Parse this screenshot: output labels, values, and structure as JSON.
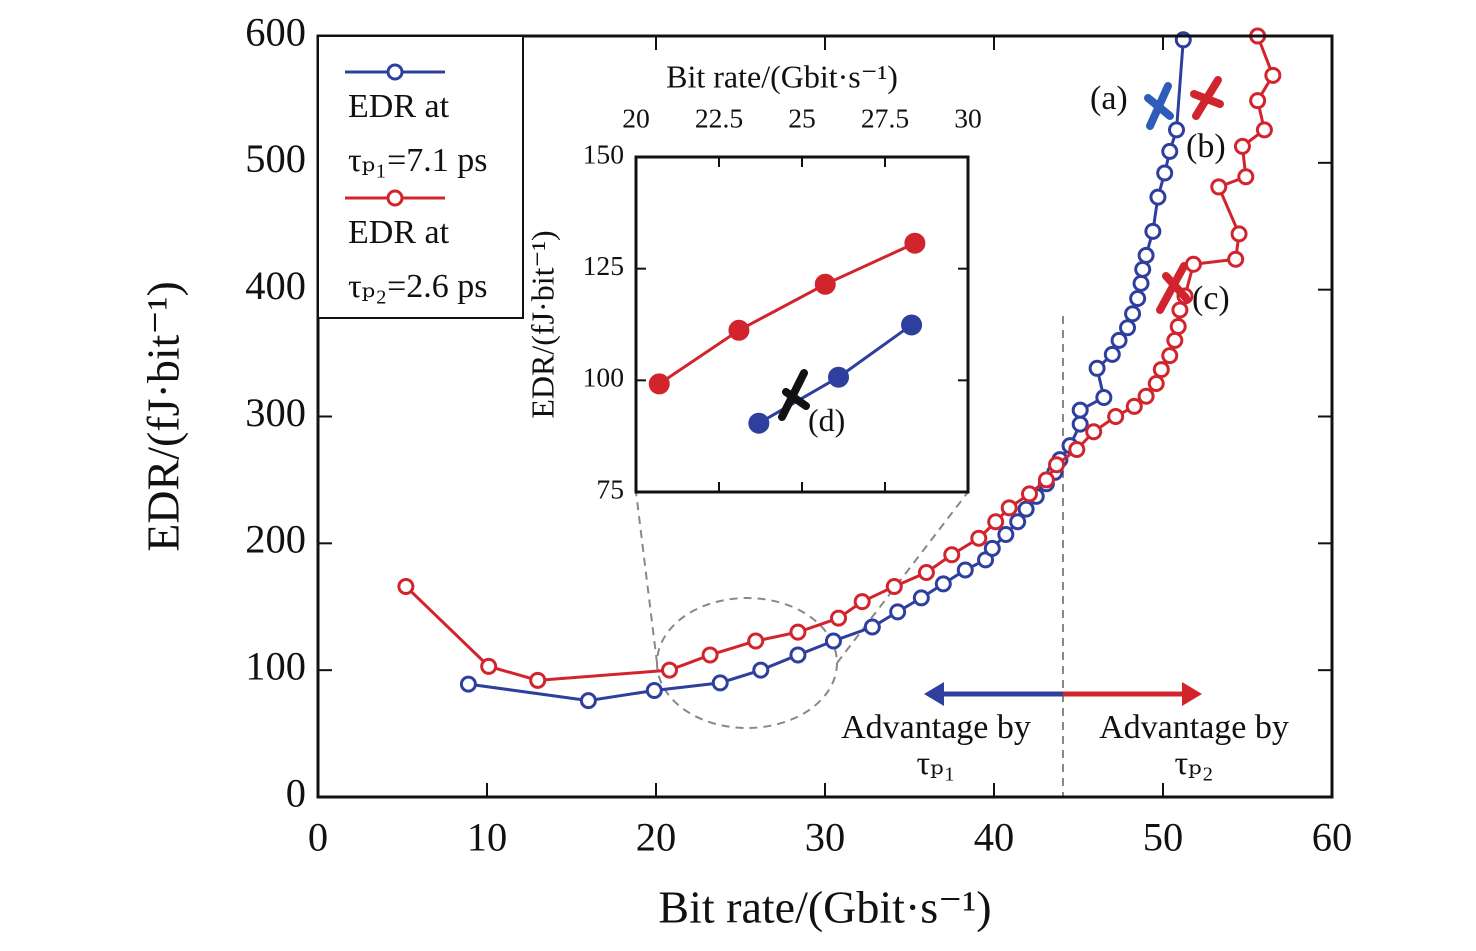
{
  "chart_data": [
    {
      "type": "line",
      "x_label": "Bit rate/(Gbit·s⁻¹)",
      "y_label": "EDR/(fJ·bit⁻¹)",
      "xlim": [
        0,
        60
      ],
      "xticks": [
        0,
        10,
        20,
        30,
        40,
        50,
        60
      ],
      "ylim": [
        0,
        600
      ],
      "yticks": [
        0,
        100,
        200,
        300,
        400,
        500,
        600
      ],
      "legend": "upper left",
      "markers": "hollow",
      "series": [
        {
          "name": "EDR at\nτₚ₁=7.1 ps",
          "color": "#2e3f9e",
          "x": [
            8.9,
            16.0,
            19.9,
            23.8,
            26.2,
            28.4,
            30.5,
            32.8,
            34.3,
            35.7,
            37.0,
            38.3,
            39.5,
            39.9,
            40.7,
            41.4,
            41.9,
            42.5,
            43.1,
            43.6,
            43.9,
            44.5,
            45.1,
            45.1,
            46.5,
            46.1,
            47.0,
            47.4,
            47.9,
            48.2,
            48.5,
            48.7,
            48.8,
            49.0,
            49.4,
            49.7,
            50.1,
            50.4,
            50.8,
            51.2
          ],
          "values": [
            89,
            76,
            84,
            90,
            100,
            112,
            123,
            134,
            146,
            157,
            168,
            179,
            187,
            196,
            207,
            217,
            227,
            237,
            247,
            256,
            266,
            277,
            294,
            305,
            315,
            338,
            349,
            360,
            370,
            381,
            393,
            405,
            416,
            427,
            446,
            473,
            492,
            509,
            526,
            597
          ]
        },
        {
          "name": "EDR at\nτₚ₂=2.6 ps",
          "color": "#d2242c",
          "x": [
            5.2,
            10.1,
            13.0,
            20.8,
            23.2,
            25.9,
            28.4,
            30.8,
            32.2,
            34.1,
            36.0,
            37.5,
            39.1,
            40.1,
            40.9,
            42.1,
            43.1,
            43.7,
            44.9,
            45.9,
            47.2,
            48.3,
            49.0,
            49.6,
            49.9,
            50.4,
            50.7,
            50.9,
            51.0,
            51.3,
            51.8,
            54.3,
            54.5,
            53.3,
            54.9,
            54.7,
            56.0,
            55.6,
            56.5,
            55.6
          ],
          "values": [
            166,
            103,
            92,
            100,
            112,
            123,
            130,
            141,
            154,
            166,
            177,
            191,
            204,
            217,
            228,
            239,
            250,
            262,
            274,
            288,
            300,
            308,
            316,
            326,
            337,
            348,
            360,
            371,
            384,
            395,
            420,
            424,
            444,
            481,
            489,
            513,
            526,
            549,
            569,
            600
          ]
        }
      ],
      "annotations": [
        "(a)",
        "(b)",
        "(c)",
        "Advantage by\nτₚ₁",
        "Advantage by\nτₚ₂"
      ]
    },
    {
      "type": "line",
      "x_label": "Bit rate/(Gbit·s⁻¹)",
      "y_label": "EDR/(fJ·bit⁻¹)",
      "xlim": [
        20,
        30
      ],
      "xticks": [
        20,
        22.5,
        25,
        27.5,
        30
      ],
      "ylim": [
        75,
        150
      ],
      "yticks": [
        75,
        100,
        125,
        150
      ],
      "x_axis_position": "top",
      "markers": "filled",
      "series": [
        {
          "color": "#2e3f9e",
          "x": [
            23.7,
            26.1,
            28.3
          ],
          "values": [
            90.4,
            100.7,
            112.4
          ]
        },
        {
          "color": "#d2242c",
          "x": [
            20.7,
            23.1,
            25.7,
            28.4
          ],
          "values": [
            99.2,
            111.2,
            121.5,
            130.7
          ]
        }
      ],
      "annotations": [
        "(d)"
      ]
    }
  ]
}
